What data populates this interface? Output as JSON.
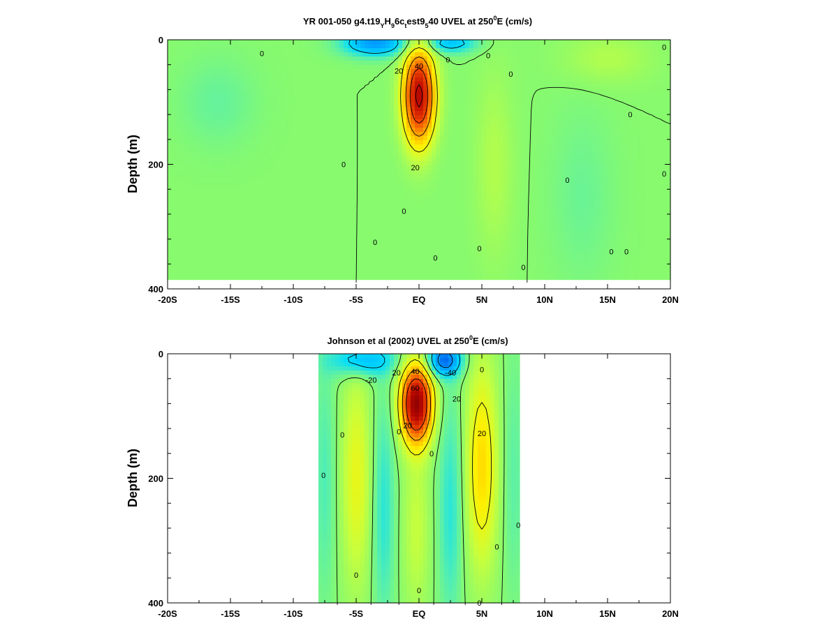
{
  "chart_data": [
    {
      "type": "heatmap",
      "title": "YR 001-050 g4.t19_YH_9 6c_t est9_5 40 UVEL at 250°E (cm/s)",
      "title_parts": {
        "a": "YR 001-050 g4.t19",
        "a_sub": "Y",
        "b": "H",
        "b_sub": "9",
        "c": "6c",
        "c_sub": "t",
        "d": "est9",
        "d_sub": "5",
        "e": "40 UVEL at 250",
        "e_sup": "0",
        "f": "E (cm/s)"
      },
      "ylabel": "Depth (m)",
      "xlabel": "",
      "x_ticks": [
        "-20S",
        "-15S",
        "-10S",
        "-5S",
        "EQ",
        "5N",
        "10N",
        "15N",
        "20N"
      ],
      "y_ticks": [
        "0",
        "200",
        "400"
      ],
      "xlim": [
        -20,
        20
      ],
      "ylim": [
        0,
        400
      ],
      "data_xlim": [
        -20,
        20
      ],
      "data_ylim": [
        0,
        385
      ],
      "background_value": 0,
      "features": [
        {
          "lat": 0,
          "depth": 90,
          "value": 85,
          "lat_half_width": 1.2,
          "depth_half_width": 75
        },
        {
          "lat": -3.5,
          "depth": 5,
          "value": -40,
          "lat_half_width": 2.5,
          "depth_half_width": 20
        },
        {
          "lat": 2.5,
          "depth": 5,
          "value": -28,
          "lat_half_width": 2.0,
          "depth_half_width": 15
        },
        {
          "lat": 6,
          "depth": 200,
          "value": 8,
          "lat_half_width": 1.5,
          "depth_half_width": 150
        },
        {
          "lat": 15,
          "depth": 30,
          "value": 8,
          "lat_half_width": 3.5,
          "depth_half_width": 40
        },
        {
          "lat": -16,
          "depth": 100,
          "value": -6,
          "lat_half_width": 3.0,
          "depth_half_width": 70
        },
        {
          "lat": 13,
          "depth": 250,
          "value": -5,
          "lat_half_width": 2.5,
          "depth_half_width": 140
        }
      ],
      "contour_levels": [
        -20,
        20,
        40,
        60,
        80
      ],
      "contour_labels": [
        {
          "text": "40",
          "lat": 0,
          "depth": 42
        },
        {
          "text": "20",
          "lat": -1.6,
          "depth": 50
        },
        {
          "text": "20",
          "lat": -0.3,
          "depth": 205
        },
        {
          "text": "0",
          "lat": 2.3,
          "depth": 32
        },
        {
          "text": "0",
          "lat": 5.5,
          "depth": 25
        },
        {
          "text": "0",
          "lat": 7.3,
          "depth": 55
        },
        {
          "text": "0",
          "lat": -12.5,
          "depth": 22
        },
        {
          "text": "0",
          "lat": -6.0,
          "depth": 200
        },
        {
          "text": "0",
          "lat": -3.5,
          "depth": 325
        },
        {
          "text": "0",
          "lat": -1.2,
          "depth": 275
        },
        {
          "text": "0",
          "lat": 1.3,
          "depth": 350
        },
        {
          "text": "0",
          "lat": 4.8,
          "depth": 335
        },
        {
          "text": "0",
          "lat": 8.3,
          "depth": 365
        },
        {
          "text": "0",
          "lat": 11.8,
          "depth": 225
        },
        {
          "text": "0",
          "lat": 15.3,
          "depth": 340
        },
        {
          "text": "0",
          "lat": 16.8,
          "depth": 120
        },
        {
          "text": "0",
          "lat": 16.5,
          "depth": 340
        },
        {
          "text": "0",
          "lat": 19.5,
          "depth": 12
        },
        {
          "text": "0",
          "lat": 19.5,
          "depth": 215
        }
      ]
    },
    {
      "type": "heatmap",
      "title": "Johnson et al (2002) UVEL at 250°E (cm/s)",
      "title_parts": {
        "a": "Johnson et al (2002) UVEL at 250",
        "e_sup": "0",
        "f": "E (cm/s)"
      },
      "ylabel": "Depth (m)",
      "xlabel": "",
      "x_ticks": [
        "-20S",
        "-15S",
        "-10S",
        "-5S",
        "EQ",
        "5N",
        "10N",
        "15N",
        "20N"
      ],
      "y_ticks": [
        "0",
        "200",
        "400"
      ],
      "xlim": [
        -20,
        20
      ],
      "ylim": [
        0,
        400
      ],
      "data_xlim": [
        -8,
        8
      ],
      "data_ylim": [
        0,
        400
      ],
      "background_value": 0,
      "features": [
        {
          "lat": -0.2,
          "depth": 80,
          "value": 95,
          "lat_half_width": 1.2,
          "depth_half_width": 60
        },
        {
          "lat": -4.5,
          "depth": 10,
          "value": -30,
          "lat_half_width": 2.5,
          "depth_half_width": 25
        },
        {
          "lat": 2.0,
          "depth": 10,
          "value": -50,
          "lat_half_width": 1.3,
          "depth_half_width": 25
        },
        {
          "lat": 5.0,
          "depth": 180,
          "value": 30,
          "lat_half_width": 1.2,
          "depth_half_width": 160
        },
        {
          "lat": -5.0,
          "depth": 200,
          "value": 20,
          "lat_half_width": 1.1,
          "depth_half_width": 170
        },
        {
          "lat": -0.2,
          "depth": 280,
          "value": 12,
          "lat_half_width": 1.0,
          "depth_half_width": 140
        },
        {
          "lat": -2.8,
          "depth": 250,
          "value": -15,
          "lat_half_width": 0.8,
          "depth_half_width": 180
        },
        {
          "lat": 2.5,
          "depth": 250,
          "value": -15,
          "lat_half_width": 0.9,
          "depth_half_width": 180
        },
        {
          "lat": -7.5,
          "depth": 200,
          "value": -10,
          "lat_half_width": 0.8,
          "depth_half_width": 200
        },
        {
          "lat": 7.5,
          "depth": 200,
          "value": -8,
          "lat_half_width": 0.8,
          "depth_half_width": 200
        }
      ],
      "contour_levels": [
        -40,
        -20,
        20,
        40,
        60
      ],
      "contour_labels": [
        {
          "text": "-20",
          "lat": -3.8,
          "depth": 42
        },
        {
          "text": "-40",
          "lat": 2.5,
          "depth": 30
        },
        {
          "text": "40",
          "lat": -0.3,
          "depth": 28
        },
        {
          "text": "60",
          "lat": -0.3,
          "depth": 55
        },
        {
          "text": "20",
          "lat": -1.8,
          "depth": 30
        },
        {
          "text": "20",
          "lat": 3.0,
          "depth": 72
        },
        {
          "text": "20",
          "lat": 5.0,
          "depth": 128
        },
        {
          "text": "20",
          "lat": -0.9,
          "depth": 115
        },
        {
          "text": "0",
          "lat": -1.6,
          "depth": 125
        },
        {
          "text": "0",
          "lat": -6.1,
          "depth": 130
        },
        {
          "text": "0",
          "lat": -7.6,
          "depth": 195
        },
        {
          "text": "0",
          "lat": 1.0,
          "depth": 160
        },
        {
          "text": "0",
          "lat": 5.0,
          "depth": 25
        },
        {
          "text": "0",
          "lat": 7.9,
          "depth": 275
        },
        {
          "text": "0",
          "lat": 6.2,
          "depth": 310
        },
        {
          "text": "0",
          "lat": -5.0,
          "depth": 355
        },
        {
          "text": "0",
          "lat": 0,
          "depth": 380
        },
        {
          "text": "0",
          "lat": 4.8,
          "depth": 400
        }
      ]
    }
  ]
}
